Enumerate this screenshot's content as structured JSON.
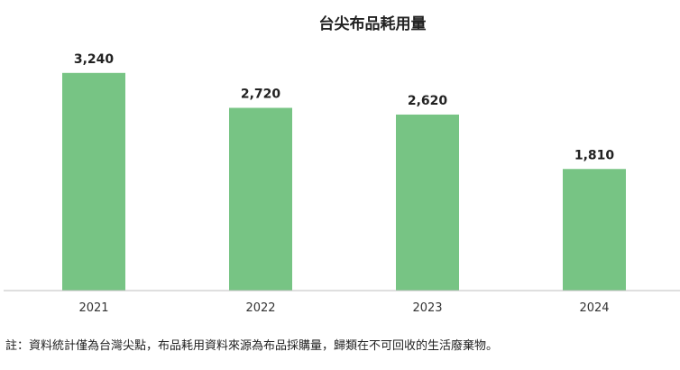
{
  "chart_data": {
    "type": "bar",
    "title": "台尖布品耗用量",
    "categories": [
      "2021",
      "2022",
      "2023",
      "2024"
    ],
    "values": [
      3240,
      2720,
      2620,
      1810
    ],
    "value_labels": [
      "3,240",
      "2,720",
      "2,620",
      "1,810"
    ],
    "ylim": [
      0,
      3600
    ],
    "grid": false,
    "legend": "none",
    "bar_color": "#77c484",
    "axis_color": "#bfbfbf"
  },
  "footnote": "註：資料統計僅為台灣尖點，布品耗用資料來源為布品採購量，歸類在不可回收的生活廢棄物。"
}
